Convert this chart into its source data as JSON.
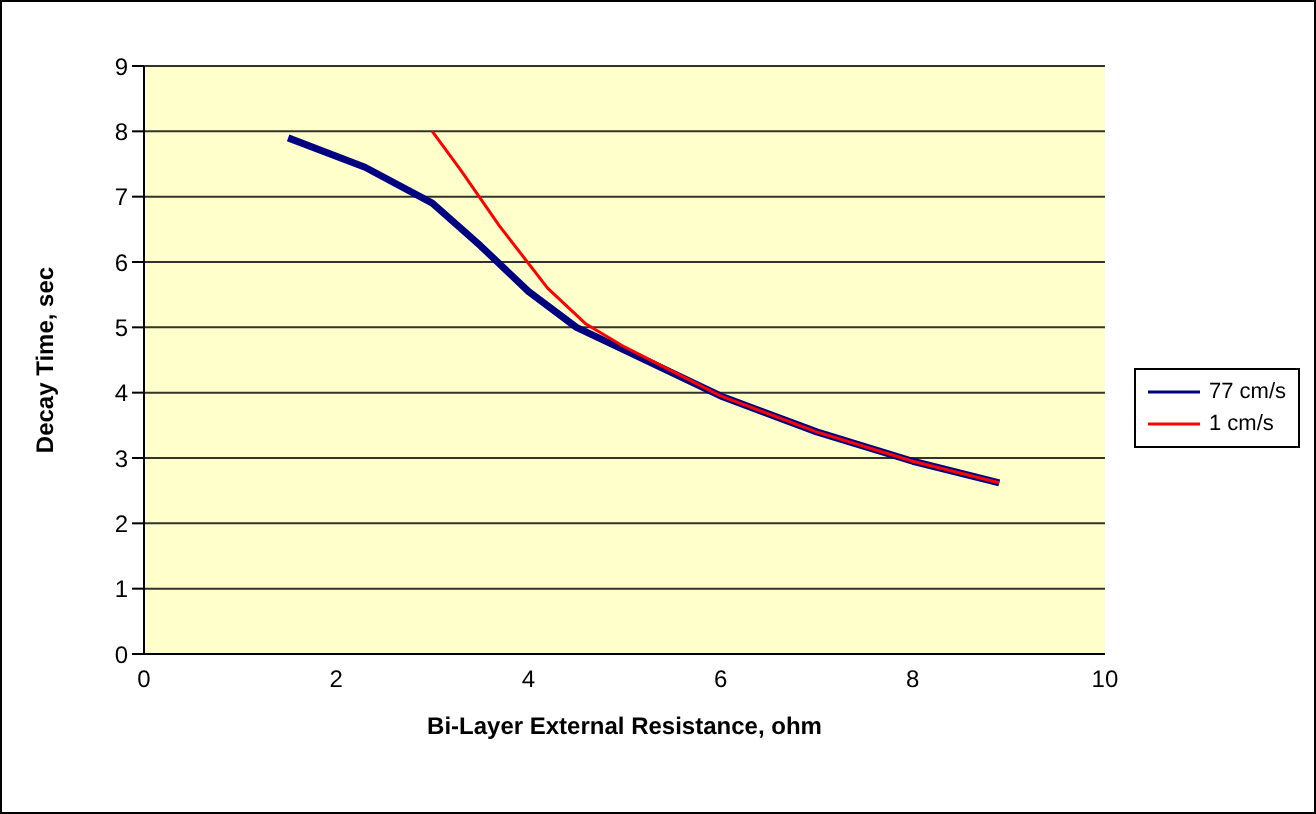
{
  "chart_data": {
    "type": "line",
    "xlabel": "Bi-Layer External Resistance, ohm",
    "ylabel": "Decay Time, sec",
    "xlim": [
      0,
      10
    ],
    "xticks": [
      0,
      2,
      4,
      6,
      8,
      10
    ],
    "ylim": [
      0,
      9
    ],
    "yticks": [
      0,
      1,
      2,
      3,
      4,
      5,
      6,
      7,
      8,
      9
    ],
    "grid": "y",
    "legend": "right",
    "marker": "none",
    "series": [
      {
        "name": "77 cm/s",
        "color": "#000080",
        "x": [
          1.5,
          2.3,
          3,
          3.5,
          4,
          4.5,
          5,
          6,
          7,
          8,
          8.9
        ],
        "values": [
          7.9,
          7.45,
          6.9,
          6.25,
          5.55,
          5.0,
          4.65,
          3.95,
          3.4,
          2.95,
          2.62
        ]
      },
      {
        "name": "1 cm/s",
        "color": "#ff0000",
        "x": [
          3,
          3.3,
          3.7,
          4.2,
          4.6,
          5,
          6,
          7,
          8,
          8.9
        ],
        "values": [
          8.0,
          7.4,
          6.55,
          5.6,
          5.05,
          4.7,
          3.95,
          3.4,
          2.95,
          2.62
        ]
      }
    ]
  }
}
